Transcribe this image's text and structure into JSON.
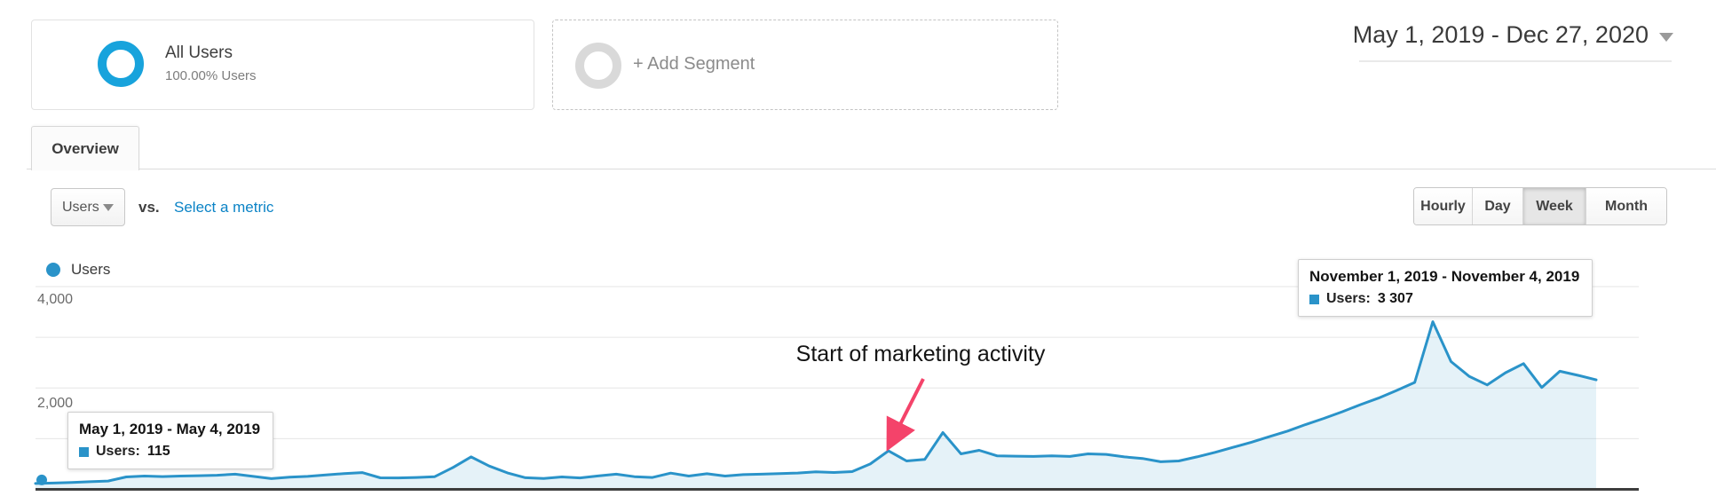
{
  "segments": {
    "all_users": {
      "title": "All Users",
      "subtitle": "100.00% Users"
    },
    "add_segment": {
      "label": "+ Add Segment"
    }
  },
  "date_range": {
    "label": "May 1, 2019 - Dec 27, 2020"
  },
  "tab": {
    "label": "Overview"
  },
  "metric_bar": {
    "metric_selector": "Users",
    "vs_label": "vs.",
    "select_metric_link": "Select a metric",
    "granularity": [
      "Hourly",
      "Day",
      "Week",
      "Month"
    ],
    "granularity_selected": "Week"
  },
  "chart_data": {
    "type": "area",
    "title": "Users",
    "legend": [
      "Users"
    ],
    "legend_position": "top-left",
    "grid": "horizontal",
    "x_unit": "week",
    "x_range": [
      "May 1, 2019",
      "Dec 27, 2020"
    ],
    "ylim": [
      0,
      4000
    ],
    "yticks": [
      1000,
      2000,
      3000,
      4000
    ],
    "ytick_labels": [
      "4,000",
      "2,000"
    ],
    "series": [
      {
        "name": "Users",
        "values": [
          115,
          125,
          135,
          150,
          165,
          245,
          262,
          252,
          262,
          270,
          278,
          300,
          255,
          212,
          242,
          255,
          285,
          310,
          330,
          228,
          225,
          235,
          250,
          430,
          640,
          460,
          325,
          230,
          215,
          245,
          225,
          265,
          300,
          250,
          235,
          320,
          262,
          308,
          262,
          290,
          300,
          312,
          322,
          345,
          332,
          350,
          500,
          760,
          560,
          590,
          1120,
          700,
          770,
          660,
          655,
          650,
          660,
          650,
          700,
          690,
          640,
          610,
          545,
          560,
          640,
          730,
          830,
          930,
          1040,
          1150,
          1280,
          1400,
          1530,
          1670,
          1800,
          1950,
          2110,
          3307,
          2520,
          2230,
          2060,
          2300,
          2480,
          2010,
          2330,
          2250,
          2160
        ]
      }
    ],
    "notable_points": [
      {
        "label": "May 1, 2019 - May 4, 2019",
        "users": "115"
      },
      {
        "label": "November 1, 2019 - November 4, 2019",
        "users": "3 307"
      }
    ]
  },
  "tooltip_nov": {
    "title": "November 1, 2019 - November 4, 2019",
    "label": "Users:",
    "value": "3 307"
  },
  "tooltip_may": {
    "title": "May 1, 2019 - May 4, 2019",
    "label": "Users:",
    "value": "115"
  },
  "annotation": {
    "text": "Start of marketing activity"
  },
  "colors": {
    "brand_ring": "#18a3dc",
    "line": "#2a93c9",
    "area_fill": "rgba(42,147,201,0.12)",
    "gridline": "#e6e6e6",
    "axis": "#3d3d3d",
    "link": "#0b83c6",
    "arrow": "#f4436a"
  }
}
